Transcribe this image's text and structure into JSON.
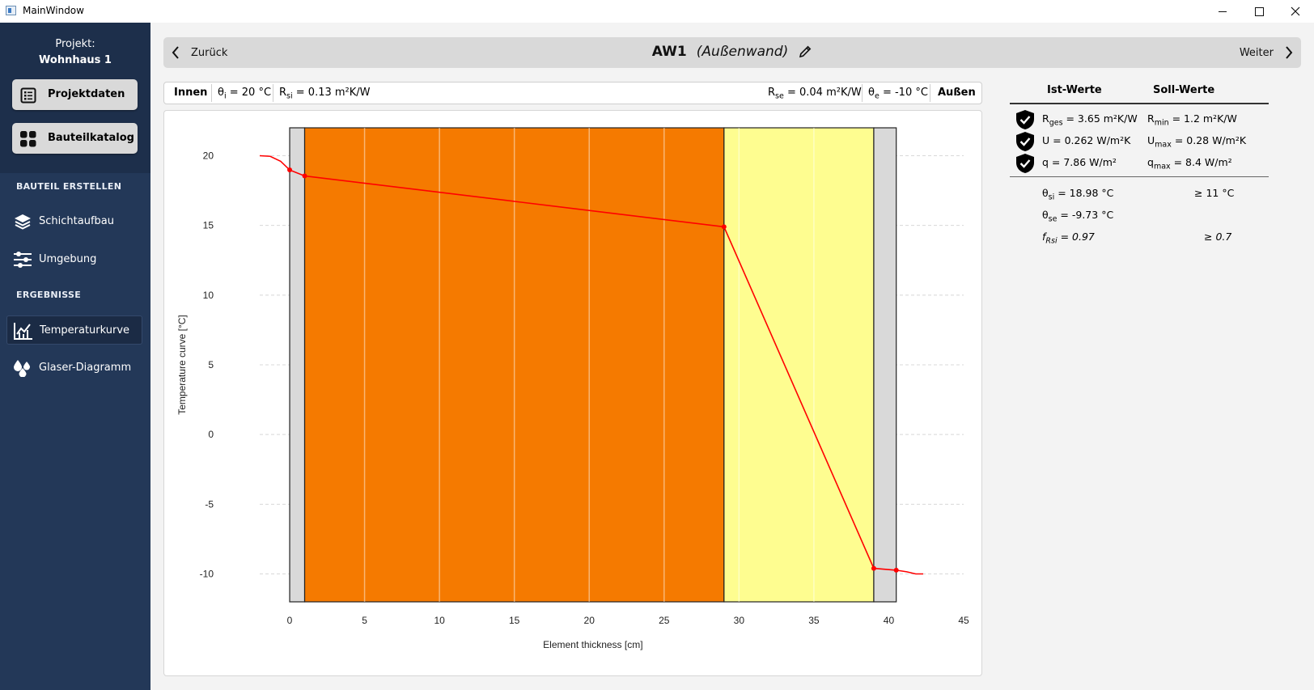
{
  "window": {
    "title": "MainWindow"
  },
  "sidebar": {
    "project_label": "Projekt:",
    "project_name": "Wohnhaus 1",
    "buttons": [
      {
        "label": "Projektdaten",
        "icon": "list-icon"
      },
      {
        "label": "Bauteilkatalog",
        "icon": "grid-icon"
      }
    ],
    "section_create": "BAUTEIL ERSTELLEN",
    "create_items": [
      {
        "label": "Schichtaufbau",
        "icon": "layers-icon"
      },
      {
        "label": "Umgebung",
        "icon": "sliders-icon"
      }
    ],
    "section_results": "ERGEBNISSE",
    "result_items": [
      {
        "label": "Temperaturkurve",
        "icon": "line-chart-icon",
        "active": true
      },
      {
        "label": "Glaser-Diagramm",
        "icon": "drops-icon",
        "active": false
      }
    ],
    "colors": {
      "background": "#233858",
      "top": "#1d2f4b"
    }
  },
  "nav": {
    "back_label": "Zurück",
    "next_label": "Weiter",
    "element_name": "AW1",
    "element_type": "(Außenwand)",
    "edit_icon": "pencil-icon"
  },
  "infobar": {
    "inside_label": "Innen",
    "theta_i": "θi = 20 °C",
    "theta_i_sym": "θ",
    "theta_i_sub": "i",
    "theta_i_rest": " = 20 °C",
    "r_si_sym": "R",
    "r_si_sub": "si",
    "r_si_rest": " = 0.13 m²K/W",
    "r_se_sym": "R",
    "r_se_sub": "se",
    "r_se_rest": " = 0.04 m²K/W",
    "theta_e_sym": "θ",
    "theta_e_sub": "e",
    "theta_e_rest": " = -10 °C",
    "outside_label": "Außen"
  },
  "chart_data": {
    "type": "line",
    "xlabel": "Element thickness [cm]",
    "ylabel": "Temperature curve [°C]",
    "xlim": [
      -2,
      45
    ],
    "ylim": [
      -12,
      22
    ],
    "xticks": [
      0,
      5,
      10,
      15,
      20,
      25,
      30,
      35,
      40,
      45
    ],
    "yticks": [
      20,
      15,
      10,
      5,
      0,
      -5,
      -10
    ],
    "grid": true,
    "layers": [
      {
        "from": 0,
        "to": 1,
        "color": "#d9d9d9",
        "sublines": []
      },
      {
        "from": 1,
        "to": 29,
        "color": "#f57a00",
        "sublines": [
          5,
          10,
          15,
          20,
          25
        ]
      },
      {
        "from": 29,
        "to": 39,
        "color": "#fefd90",
        "sublines": [
          30,
          35
        ]
      },
      {
        "from": 39,
        "to": 40.5,
        "color": "#d9d9d9",
        "sublines": []
      }
    ],
    "series": [
      {
        "color": "#ff0000",
        "points": [
          [
            0,
            18.98
          ],
          [
            1,
            18.55
          ],
          [
            29,
            14.9
          ],
          [
            39,
            -9.6
          ],
          [
            40.5,
            -9.73
          ]
        ],
        "boundary_inside": [
          [
            -2,
            20
          ],
          [
            -1.3,
            19.95
          ],
          [
            -0.6,
            19.6
          ],
          [
            0,
            18.98
          ]
        ],
        "boundary_outside": [
          [
            40.5,
            -9.73
          ],
          [
            41.2,
            -9.85
          ],
          [
            41.8,
            -10
          ],
          [
            42.3,
            -10
          ]
        ]
      }
    ]
  },
  "results": {
    "col_actual": "Ist-Werte",
    "col_required": "Soll-Werte",
    "rows": [
      {
        "actual_sym": "R",
        "actual_sub": "ges",
        "actual_rest": " = 3.65 m²K/W",
        "required_sym": "R",
        "required_sub": "min",
        "required_rest": " = 1.2 m²K/W",
        "icon": "shield-check-icon"
      },
      {
        "actual_sym": "U",
        "actual_sub": "",
        "actual_rest": " = 0.262 W/m²K",
        "required_sym": "U",
        "required_sub": "max",
        "required_rest": " = 0.28 W/m²K",
        "icon": "shield-check-icon"
      },
      {
        "actual_sym": "q",
        "actual_sub": "",
        "actual_rest": " = 7.86 W/m²",
        "required_sym": "q",
        "required_sub": "max",
        "required_rest": " = 8.4 W/m²",
        "icon": "shield-check-icon"
      }
    ],
    "extra": [
      {
        "sym": "θ",
        "sub": "si",
        "rest": " = 18.98 °C",
        "req": "≥ 11 °C",
        "italic": false
      },
      {
        "sym": "θ",
        "sub": "se",
        "rest": " = -9.73 °C",
        "req": "",
        "italic": false
      },
      {
        "sym": "f",
        "sub": "Rsi",
        "rest": " = 0.97",
        "req": "≥ 0.7",
        "italic": true
      }
    ]
  }
}
